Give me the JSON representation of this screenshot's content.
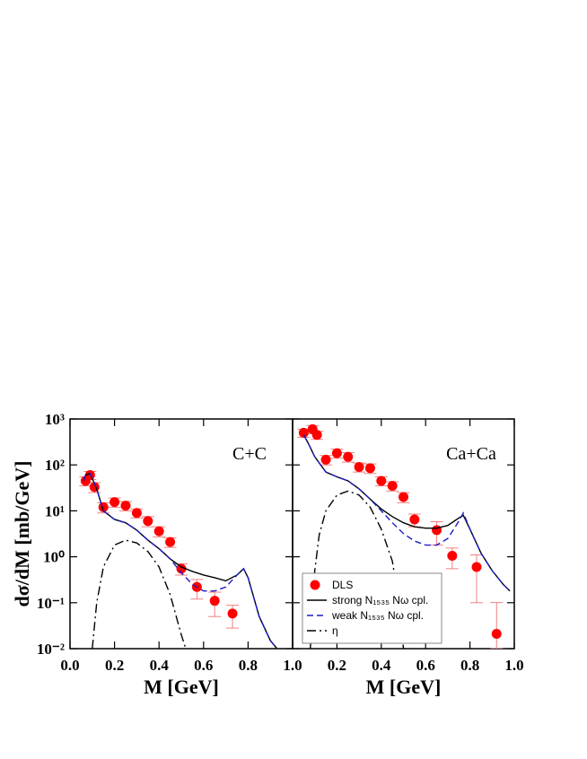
{
  "chart_data": [
    {
      "type": "line",
      "annotation": "C+C",
      "ylabel": "dσ/dM [mb/GeV]",
      "xlabel": "M [GeV]",
      "log_y": true,
      "xlim": [
        0,
        1
      ],
      "ylim": [
        0.01,
        1000
      ],
      "xticks": [
        {
          "value": 0,
          "label": "0.0"
        },
        {
          "value": 0.2,
          "label": "0.2"
        },
        {
          "value": 0.4,
          "label": "0.4"
        },
        {
          "value": 0.6,
          "label": "0.6"
        },
        {
          "value": 0.8,
          "label": "0.8"
        },
        {
          "value": 1,
          "label": "1.0"
        }
      ],
      "yticks": [
        {
          "value": 0.01,
          "label": "10⁻²"
        },
        {
          "value": 0.1,
          "label": "10⁻¹"
        },
        {
          "value": 1,
          "label": "10⁰"
        },
        {
          "value": 10,
          "label": "10¹"
        },
        {
          "value": 100,
          "label": "10²"
        },
        {
          "value": 1000,
          "label": "10³"
        }
      ],
      "series": [
        {
          "type": "scatter",
          "color": "#ff0000",
          "error_color": "#f08080",
          "x": [
            0.07,
            0.09,
            0.11,
            0.15,
            0.2,
            0.25,
            0.3,
            0.35,
            0.4,
            0.45,
            0.5,
            0.57,
            0.65,
            0.73
          ],
          "values": [
            45,
            60,
            33,
            12,
            15.5,
            13,
            9,
            6,
            3.6,
            2.1,
            0.55,
            0.22,
            0.11,
            0.058
          ],
          "errors": [
            10,
            12,
            8,
            3,
            3.5,
            3,
            2,
            1.5,
            0.9,
            0.5,
            0.15,
            0.1,
            0.06,
            0.03
          ]
        },
        {
          "type": "line",
          "style": "solid",
          "color": "#000000",
          "x": [
            0.06,
            0.07,
            0.09,
            0.12,
            0.15,
            0.2,
            0.25,
            0.3,
            0.35,
            0.4,
            0.45,
            0.5,
            0.55,
            0.6,
            0.65,
            0.7,
            0.75,
            0.78,
            0.8,
            0.85,
            0.9,
            0.93
          ],
          "values": [
            45,
            60,
            65,
            30,
            10,
            6.5,
            5.5,
            3.8,
            2.3,
            1.5,
            0.9,
            0.6,
            0.48,
            0.4,
            0.35,
            0.3,
            0.4,
            0.55,
            0.35,
            0.05,
            0.015,
            0.01
          ]
        },
        {
          "type": "line",
          "style": "dashed",
          "color": "#1c1cc8",
          "x": [
            0.06,
            0.07,
            0.09,
            0.12,
            0.15,
            0.2,
            0.25,
            0.3,
            0.35,
            0.4,
            0.45,
            0.5,
            0.55,
            0.6,
            0.65,
            0.7,
            0.75,
            0.78,
            0.8,
            0.85,
            0.9,
            0.93
          ],
          "values": [
            45,
            60,
            65,
            30,
            10,
            6.5,
            5.5,
            3.8,
            2.3,
            1.5,
            0.9,
            0.45,
            0.25,
            0.18,
            0.18,
            0.22,
            0.4,
            0.55,
            0.35,
            0.05,
            0.015,
            0.01
          ]
        },
        {
          "type": "line",
          "style": "dashdot",
          "color": "#000000",
          "x": [
            0.1,
            0.12,
            0.15,
            0.2,
            0.25,
            0.3,
            0.35,
            0.4,
            0.45,
            0.5,
            0.52
          ],
          "values": [
            0.01,
            0.1,
            0.6,
            1.8,
            2.3,
            2.0,
            1.3,
            0.6,
            0.15,
            0.02,
            0.01
          ]
        }
      ]
    },
    {
      "type": "line",
      "annotation": "Ca+Ca",
      "xlabel": "M [GeV]",
      "log_y": true,
      "xlim": [
        0,
        1
      ],
      "ylim": [
        0.01,
        1000
      ],
      "legend": "lower left",
      "xticks": [
        {
          "value": 0.2,
          "label": "0.2"
        },
        {
          "value": 0.4,
          "label": "0.4"
        },
        {
          "value": 0.6,
          "label": "0.6"
        },
        {
          "value": 0.8,
          "label": "0.8"
        },
        {
          "value": 1,
          "label": "1.0"
        }
      ],
      "series": [
        {
          "name": "DLS",
          "type": "scatter",
          "color": "#ff0000",
          "error_color": "#f08080",
          "x": [
            0.05,
            0.09,
            0.11,
            0.15,
            0.2,
            0.25,
            0.3,
            0.35,
            0.4,
            0.45,
            0.5,
            0.55,
            0.65,
            0.72,
            0.83,
            0.92
          ],
          "values": [
            500,
            600,
            450,
            130,
            180,
            150,
            90,
            85,
            45,
            35,
            20,
            6.5,
            3.8,
            1.05,
            0.6,
            0.021
          ],
          "errors": [
            100,
            120,
            90,
            30,
            40,
            35,
            20,
            20,
            10,
            8,
            5,
            2,
            2,
            0.5,
            0.5,
            0.08
          ]
        },
        {
          "name": "strong N₁₅₃₅ Nω cpl.",
          "type": "line",
          "style": "solid",
          "color": "#000000",
          "x": [
            0.05,
            0.07,
            0.1,
            0.15,
            0.2,
            0.25,
            0.3,
            0.35,
            0.4,
            0.45,
            0.5,
            0.55,
            0.6,
            0.65,
            0.7,
            0.75,
            0.77,
            0.8,
            0.85,
            0.9,
            0.95,
            0.98
          ],
          "values": [
            450,
            300,
            150,
            70,
            55,
            45,
            30,
            18,
            11,
            7.5,
            5.5,
            4.5,
            4.2,
            4.2,
            4.8,
            7,
            8,
            4,
            1.2,
            0.5,
            0.25,
            0.18
          ]
        },
        {
          "name": "weak N₁₅₃₅ Nω cpl.",
          "type": "line",
          "style": "dashed",
          "color": "#1c1cc8",
          "x": [
            0.05,
            0.07,
            0.1,
            0.15,
            0.2,
            0.25,
            0.3,
            0.35,
            0.4,
            0.45,
            0.5,
            0.55,
            0.6,
            0.65,
            0.7,
            0.75,
            0.77,
            0.8,
            0.85,
            0.9,
            0.95,
            0.98
          ],
          "values": [
            450,
            300,
            150,
            70,
            55,
            45,
            30,
            18,
            10,
            5.5,
            3.2,
            2.2,
            1.8,
            1.8,
            2.5,
            6,
            9,
            4,
            1.2,
            0.5,
            0.25,
            0.18
          ]
        },
        {
          "name": "η",
          "type": "line",
          "style": "dashdot",
          "color": "#000000",
          "x": [
            0.08,
            0.1,
            0.12,
            0.15,
            0.2,
            0.25,
            0.3,
            0.35,
            0.4,
            0.45,
            0.48,
            0.5
          ],
          "values": [
            0.01,
            0.5,
            3,
            10,
            22,
            27,
            22,
            12,
            4,
            0.8,
            0.1,
            0.01
          ]
        }
      ]
    }
  ]
}
